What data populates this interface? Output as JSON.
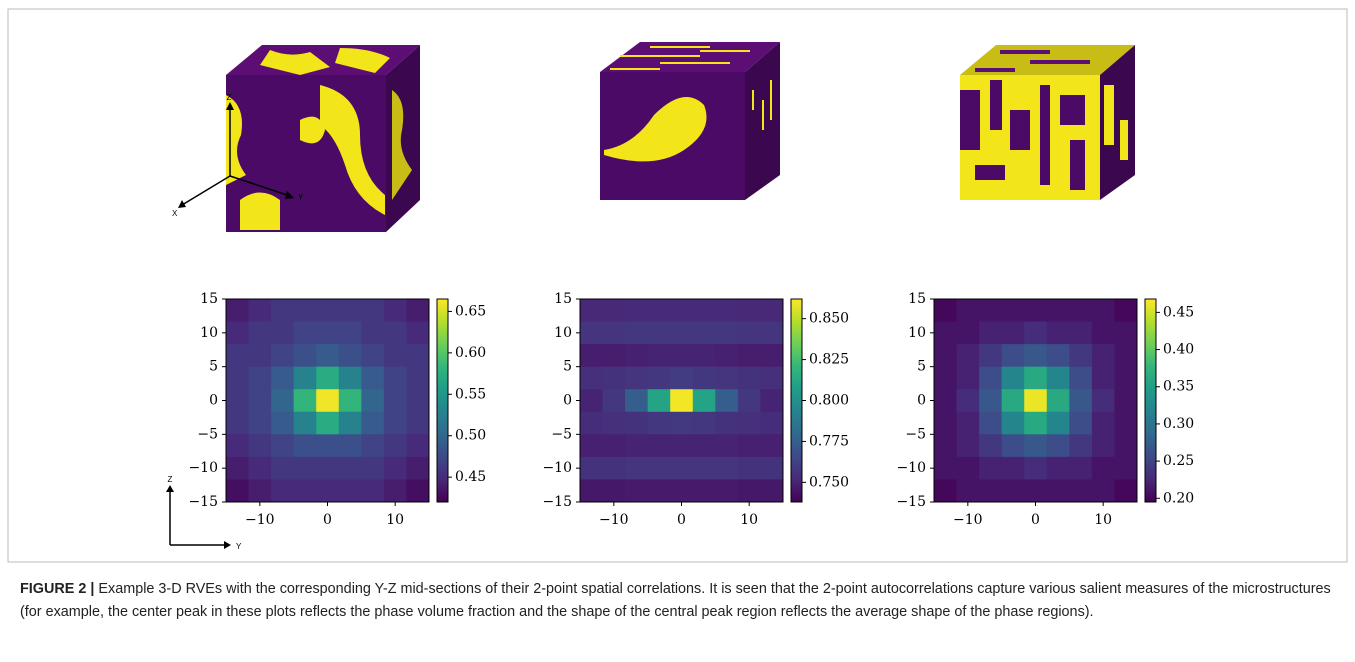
{
  "figure": {
    "label": "FIGURE 2 |",
    "caption": "Example 3-D RVEs with the corresponding Y-Z mid-sections of their 2-point spatial correlations. It is seen that the 2-point autocorrelations capture various salient measures of the microstructures (for example, the center peak in these plots reflects the phase volume fraction and the shape of the central peak region reflects the average shape of the phase regions)."
  },
  "rve_axes": {
    "z": "Z",
    "y": "Y",
    "x": "X"
  },
  "section_axes": {
    "z": "Z",
    "y": "Y"
  },
  "chart_data": [
    {
      "type": "heatmap",
      "xlim": [
        -15,
        15
      ],
      "ylim": [
        -15,
        15
      ],
      "xticks": [
        {
          "value": -10,
          "label": "−10"
        },
        0,
        10
      ],
      "yticks": [
        15,
        10,
        5,
        0,
        {
          "value": -5,
          "label": "−5"
        },
        {
          "value": -10,
          "label": "−10"
        },
        {
          "value": -15,
          "label": "−15"
        }
      ],
      "values": [
        [
          0.44,
          0.45,
          0.46,
          0.46,
          0.46,
          0.46,
          0.46,
          0.45,
          0.44
        ],
        [
          0.45,
          0.46,
          0.46,
          0.47,
          0.47,
          0.47,
          0.46,
          0.46,
          0.45
        ],
        [
          0.46,
          0.46,
          0.47,
          0.48,
          0.49,
          0.48,
          0.47,
          0.46,
          0.46
        ],
        [
          0.46,
          0.47,
          0.49,
          0.53,
          0.57,
          0.53,
          0.49,
          0.47,
          0.46
        ],
        [
          0.46,
          0.47,
          0.5,
          0.58,
          0.66,
          0.58,
          0.5,
          0.47,
          0.46
        ],
        [
          0.46,
          0.47,
          0.49,
          0.53,
          0.57,
          0.53,
          0.49,
          0.47,
          0.46
        ],
        [
          0.45,
          0.46,
          0.47,
          0.48,
          0.48,
          0.48,
          0.47,
          0.46,
          0.45
        ],
        [
          0.44,
          0.45,
          0.46,
          0.46,
          0.46,
          0.46,
          0.46,
          0.45,
          0.44
        ],
        [
          0.43,
          0.44,
          0.45,
          0.45,
          0.45,
          0.45,
          0.45,
          0.44,
          0.43
        ]
      ],
      "colorbar": {
        "lim": [
          0.42,
          0.665
        ],
        "ticks": [
          0.45,
          {
            "value": 0.5,
            "label": "0.50"
          },
          0.55,
          {
            "value": 0.6,
            "label": "0.60"
          },
          0.65
        ]
      }
    },
    {
      "type": "heatmap",
      "xlim": [
        -15,
        15
      ],
      "ylim": [
        -15,
        15
      ],
      "xticks": [
        {
          "value": -10,
          "label": "−10"
        },
        0,
        10
      ],
      "yticks": [
        15,
        10,
        5,
        0,
        {
          "value": -5,
          "label": "−5"
        },
        {
          "value": -10,
          "label": "−10"
        },
        {
          "value": -15,
          "label": "−15"
        }
      ],
      "values": [
        [
          0.752,
          0.752,
          0.753,
          0.753,
          0.753,
          0.753,
          0.753,
          0.752,
          0.752
        ],
        [
          0.757,
          0.757,
          0.758,
          0.758,
          0.758,
          0.758,
          0.758,
          0.757,
          0.757
        ],
        [
          0.748,
          0.748,
          0.749,
          0.75,
          0.75,
          0.75,
          0.749,
          0.748,
          0.748
        ],
        [
          0.755,
          0.756,
          0.757,
          0.758,
          0.76,
          0.758,
          0.757,
          0.756,
          0.755
        ],
        [
          0.75,
          0.758,
          0.775,
          0.81,
          0.86,
          0.81,
          0.775,
          0.758,
          0.75
        ],
        [
          0.754,
          0.755,
          0.756,
          0.758,
          0.759,
          0.758,
          0.756,
          0.755,
          0.754
        ],
        [
          0.749,
          0.749,
          0.75,
          0.75,
          0.75,
          0.75,
          0.75,
          0.749,
          0.749
        ],
        [
          0.756,
          0.756,
          0.757,
          0.757,
          0.757,
          0.757,
          0.757,
          0.756,
          0.756
        ],
        [
          0.746,
          0.746,
          0.747,
          0.747,
          0.747,
          0.747,
          0.747,
          0.746,
          0.746
        ]
      ],
      "colorbar": {
        "lim": [
          0.738,
          0.862
        ],
        "ticks": [
          {
            "value": 0.75,
            "label": "0.750"
          },
          0.775,
          {
            "value": 0.8,
            "label": "0.800"
          },
          0.825,
          {
            "value": 0.85,
            "label": "0.850"
          }
        ]
      }
    },
    {
      "type": "heatmap",
      "xlim": [
        -15,
        15
      ],
      "ylim": [
        -15,
        15
      ],
      "xticks": [
        {
          "value": -10,
          "label": "−10"
        },
        0,
        10
      ],
      "yticks": [
        15,
        10,
        5,
        0,
        {
          "value": -5,
          "label": "−5"
        },
        {
          "value": -10,
          "label": "−10"
        },
        {
          "value": -15,
          "label": "−15"
        }
      ],
      "values": [
        [
          0.2,
          0.21,
          0.21,
          0.21,
          0.21,
          0.21,
          0.21,
          0.21,
          0.2
        ],
        [
          0.21,
          0.21,
          0.22,
          0.22,
          0.23,
          0.22,
          0.22,
          0.21,
          0.21
        ],
        [
          0.21,
          0.22,
          0.24,
          0.26,
          0.27,
          0.26,
          0.24,
          0.22,
          0.21
        ],
        [
          0.21,
          0.22,
          0.26,
          0.32,
          0.36,
          0.32,
          0.26,
          0.22,
          0.21
        ],
        [
          0.21,
          0.23,
          0.27,
          0.36,
          0.46,
          0.36,
          0.27,
          0.23,
          0.21
        ],
        [
          0.21,
          0.22,
          0.26,
          0.32,
          0.36,
          0.32,
          0.26,
          0.22,
          0.21
        ],
        [
          0.21,
          0.22,
          0.24,
          0.26,
          0.27,
          0.26,
          0.24,
          0.22,
          0.21
        ],
        [
          0.21,
          0.21,
          0.22,
          0.22,
          0.23,
          0.22,
          0.22,
          0.21,
          0.21
        ],
        [
          0.2,
          0.21,
          0.21,
          0.21,
          0.21,
          0.21,
          0.21,
          0.21,
          0.2
        ]
      ],
      "colorbar": {
        "lim": [
          0.195,
          0.468
        ],
        "ticks": [
          {
            "value": 0.2,
            "label": "0.20"
          },
          0.25,
          {
            "value": 0.3,
            "label": "0.30"
          },
          0.35,
          {
            "value": 0.4,
            "label": "0.40"
          },
          0.45
        ]
      }
    }
  ]
}
